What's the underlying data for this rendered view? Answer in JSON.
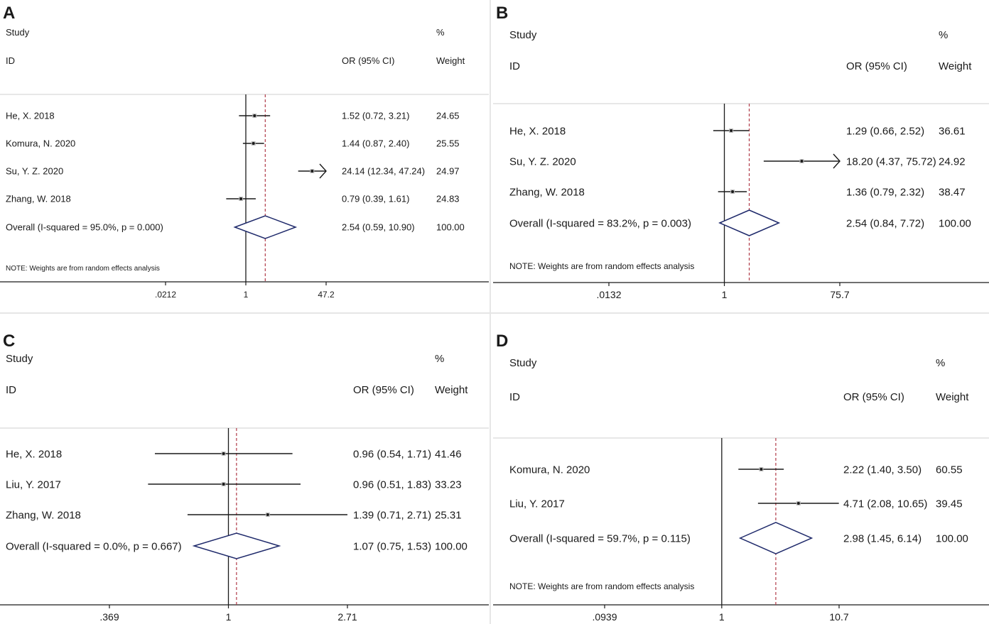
{
  "chart_data": [
    {
      "panel": "A",
      "type": "forest",
      "header": {
        "study": "Study",
        "id": "ID",
        "or": "OR (95% CI)",
        "pct": "%",
        "weight": "Weight"
      },
      "studies": [
        {
          "label": "He, X. 2018",
          "or": 1.52,
          "lo": 0.72,
          "hi": 3.21,
          "ci_text": "1.52 (0.72, 3.21)",
          "weight": "24.65"
        },
        {
          "label": "Komura, N. 2020",
          "or": 1.44,
          "lo": 0.87,
          "hi": 2.4,
          "ci_text": "1.44 (0.87, 2.40)",
          "weight": "25.55"
        },
        {
          "label": "Su, Y. Z. 2020",
          "or": 24.14,
          "lo": 12.34,
          "hi": 47.24,
          "ci_text": "24.14 (12.34, 47.24)",
          "weight": "24.97"
        },
        {
          "label": "Zhang, W. 2018",
          "or": 0.79,
          "lo": 0.39,
          "hi": 1.61,
          "ci_text": "0.79 (0.39, 1.61)",
          "weight": "24.83"
        }
      ],
      "overall": {
        "label": "Overall  (I-squared = 95.0%, p = 0.000)",
        "or": 2.54,
        "lo": 0.59,
        "hi": 10.9,
        "ci_text": "2.54 (0.59, 10.90)",
        "weight": "100.00"
      },
      "note": "NOTE: Weights are from random effects analysis",
      "ticks": [
        {
          "label": ".0212",
          "value": 0.0212
        },
        {
          "label": "1",
          "value": 1
        },
        {
          "label": "47.2",
          "value": 47.2
        }
      ],
      "xlim": [
        0.0212,
        47.2
      ],
      "scale": "log"
    },
    {
      "panel": "B",
      "type": "forest",
      "header": {
        "study": "Study",
        "id": "ID",
        "or": "OR (95% CI)",
        "pct": "%",
        "weight": "Weight"
      },
      "studies": [
        {
          "label": "He, X. 2018",
          "or": 1.29,
          "lo": 0.66,
          "hi": 2.52,
          "ci_text": "1.29 (0.66, 2.52)",
          "weight": "36.61"
        },
        {
          "label": "Su, Y. Z. 2020",
          "or": 18.2,
          "lo": 4.37,
          "hi": 75.72,
          "ci_text": "18.20 (4.37, 75.72)",
          "weight": "24.92"
        },
        {
          "label": "Zhang, W. 2018",
          "or": 1.36,
          "lo": 0.79,
          "hi": 2.32,
          "ci_text": "1.36 (0.79, 2.32)",
          "weight": "38.47"
        }
      ],
      "overall": {
        "label": "Overall  (I-squared = 83.2%, p = 0.003)",
        "or": 2.54,
        "lo": 0.84,
        "hi": 7.72,
        "ci_text": "2.54 (0.84, 7.72)",
        "weight": "100.00"
      },
      "note": "NOTE: Weights are from random effects analysis",
      "ticks": [
        {
          "label": ".0132",
          "value": 0.0132
        },
        {
          "label": "1",
          "value": 1
        },
        {
          "label": "75.7",
          "value": 75.7
        }
      ],
      "xlim": [
        0.0132,
        75.7
      ],
      "scale": "log"
    },
    {
      "panel": "C",
      "type": "forest",
      "header": {
        "study": "Study",
        "id": "ID",
        "or": "OR (95% CI)",
        "pct": "%",
        "weight": "Weight"
      },
      "studies": [
        {
          "label": "He, X. 2018",
          "or": 0.96,
          "lo": 0.54,
          "hi": 1.71,
          "ci_text": "0.96 (0.54, 1.71)",
          "weight": "41.46"
        },
        {
          "label": "Liu, Y. 2017",
          "or": 0.96,
          "lo": 0.51,
          "hi": 1.83,
          "ci_text": "0.96 (0.51, 1.83)",
          "weight": "33.23"
        },
        {
          "label": "Zhang, W. 2018",
          "or": 1.39,
          "lo": 0.71,
          "hi": 2.71,
          "ci_text": "1.39 (0.71, 2.71)",
          "weight": "25.31"
        }
      ],
      "overall": {
        "label": "Overall  (I-squared = 0.0%, p = 0.667)",
        "or": 1.07,
        "lo": 0.75,
        "hi": 1.53,
        "ci_text": "1.07 (0.75, 1.53)",
        "weight": "100.00"
      },
      "note": "",
      "ticks": [
        {
          "label": ".369",
          "value": 0.369
        },
        {
          "label": "1",
          "value": 1
        },
        {
          "label": "2.71",
          "value": 2.71
        }
      ],
      "xlim": [
        0.369,
        2.71
      ],
      "scale": "log"
    },
    {
      "panel": "D",
      "type": "forest",
      "header": {
        "study": "Study",
        "id": "ID",
        "or": "OR (95% CI)",
        "pct": "%",
        "weight": "Weight"
      },
      "studies": [
        {
          "label": "Komura, N. 2020",
          "or": 2.22,
          "lo": 1.4,
          "hi": 3.5,
          "ci_text": "2.22 (1.40, 3.50)",
          "weight": "60.55"
        },
        {
          "label": "Liu, Y. 2017",
          "or": 4.71,
          "lo": 2.08,
          "hi": 10.65,
          "ci_text": "4.71 (2.08, 10.65)",
          "weight": "39.45"
        }
      ],
      "overall": {
        "label": "Overall  (I-squared = 59.7%, p = 0.115)",
        "or": 2.98,
        "lo": 1.45,
        "hi": 6.14,
        "ci_text": "2.98 (1.45, 6.14)",
        "weight": "100.00"
      },
      "note": "NOTE: Weights are from random effects analysis",
      "ticks": [
        {
          "label": ".0939",
          "value": 0.0939
        },
        {
          "label": "1",
          "value": 1
        },
        {
          "label": "10.7",
          "value": 10.7
        }
      ],
      "xlim": [
        0.0939,
        10.7
      ],
      "scale": "log"
    }
  ],
  "colors": {
    "ci_line": "#1a1a1a",
    "diamond": "#1f2a6b",
    "overall_ref": "#b03a48",
    "axis": "#1a1a1a"
  }
}
